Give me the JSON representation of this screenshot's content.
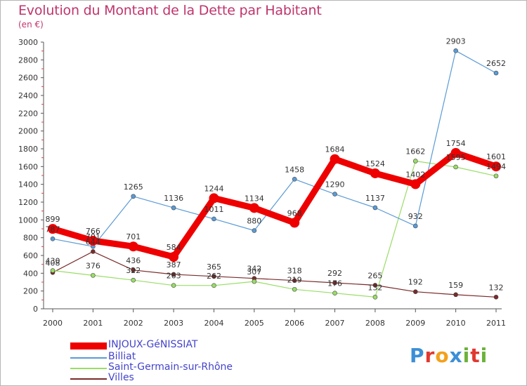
{
  "header": {
    "title": "Evolution du Montant de la Dette par Habitant",
    "subtitle": "(en €)"
  },
  "chart_data": {
    "type": "line",
    "title": "Evolution du Montant de la Dette par Habitant",
    "ylabel": "(en €)",
    "x": [
      "2000",
      "2001",
      "2002",
      "2003",
      "2004",
      "2005",
      "2006",
      "2007",
      "2008",
      "2009",
      "2010",
      "2011"
    ],
    "ylim": [
      0,
      3000
    ],
    "yticks": [
      0,
      200,
      400,
      600,
      800,
      1000,
      1200,
      1400,
      1600,
      1800,
      2000,
      2200,
      2400,
      2600,
      2800,
      3000
    ],
    "grid": false,
    "legend_position": "bottom-left",
    "series": [
      {
        "name": "INJOUX-GéNISSIAT",
        "color": "#ee0000",
        "values": [
          899,
          766,
          701,
          584,
          1244,
          1134,
          968,
          1684,
          1524,
          1402,
          1754,
          1601
        ]
      },
      {
        "name": "Billiat",
        "color": "#5b9bd5",
        "values": [
          787,
          701,
          1265,
          1136,
          1011,
          880,
          1458,
          1290,
          1137,
          932,
          2903,
          2652
        ]
      },
      {
        "name": "Saint-Germain-sur-Rhône",
        "color": "#99dd66",
        "values": [
          430,
          376,
          322,
          263,
          262,
          307,
          219,
          176,
          132,
          1662,
          1595,
          1494
        ]
      },
      {
        "name": "Villes",
        "color": "#7a2a2a",
        "values": [
          408,
          644,
          436,
          387,
          365,
          342,
          318,
          292,
          265,
          192,
          159,
          132
        ]
      }
    ],
    "data_labels": [
      {
        "series": 0,
        "labels": [
          "899",
          "766",
          "701",
          "584",
          "1244",
          "1134",
          "968",
          "1684",
          "1524",
          "1402",
          "1754",
          "1601"
        ]
      },
      {
        "series": 1,
        "labels": [
          "787",
          "701",
          "1265",
          "1136",
          "1011",
          "880",
          "1458",
          "1290",
          "1137",
          "932",
          "2903",
          "2652"
        ]
      },
      {
        "series": 2,
        "labels": [
          "430",
          "376",
          "322",
          "263",
          "262",
          "307",
          "219",
          "176",
          "132",
          "1662",
          "1595",
          "1494"
        ]
      },
      {
        "series": 3,
        "labels": [
          "408",
          "644",
          "436",
          "387",
          "365",
          "342",
          "318",
          "292",
          "265",
          "192",
          "159",
          "132"
        ]
      }
    ]
  },
  "legend": [
    {
      "label": "INJOUX-GéNISSIAT",
      "color": "#ee0000"
    },
    {
      "label": "Billiat",
      "color": "#5b9bd5"
    },
    {
      "label": "Saint-Germain-sur-Rhône",
      "color": "#99dd66"
    },
    {
      "label": "Villes",
      "color": "#7a2a2a"
    }
  ],
  "logo": {
    "text": "Proxiti"
  }
}
